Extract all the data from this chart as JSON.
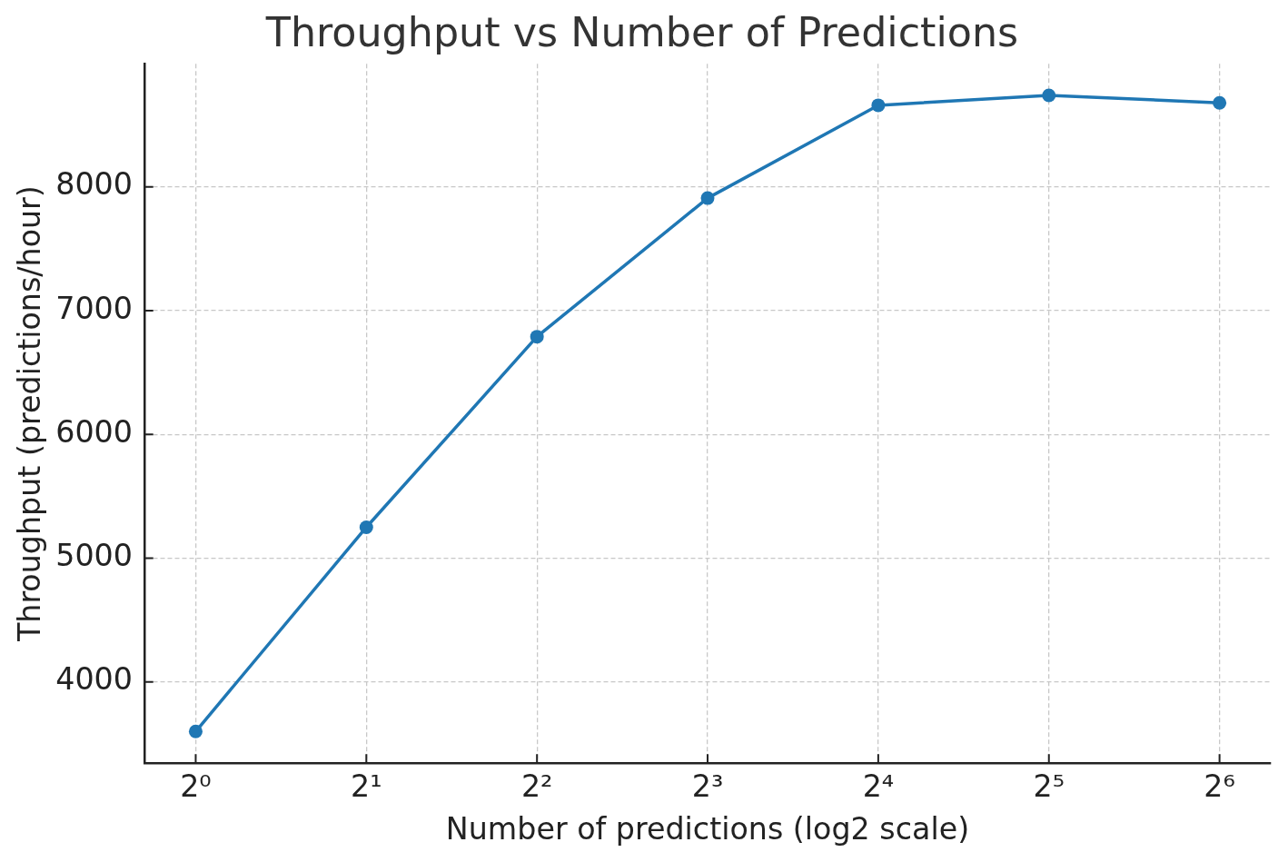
{
  "chart_data": {
    "type": "line",
    "title": "Throughput vs Number of Predictions",
    "xlabel": "Number of predictions (log2 scale)",
    "ylabel": "Throughput (predictions/hour)",
    "x": [
      1,
      2,
      4,
      8,
      16,
      32,
      64
    ],
    "series": [
      {
        "color": "#1f77b4",
        "values": [
          3600,
          5250,
          6790,
          7910,
          8660,
          8740,
          8680
        ]
      }
    ],
    "log": "x",
    "xlim": [
      0.812,
      78.8
    ],
    "xticks": [
      {
        "value": 1,
        "label": "2⁰"
      },
      {
        "value": 2,
        "label": "2¹"
      },
      {
        "value": 4,
        "label": "2²"
      },
      {
        "value": 8,
        "label": "2³"
      },
      {
        "value": 16,
        "label": "2⁴"
      },
      {
        "value": 32,
        "label": "2⁵"
      },
      {
        "value": 64,
        "label": "2⁶"
      }
    ],
    "ylim": [
      3345,
      8995
    ],
    "yticks": [
      4000,
      5000,
      6000,
      7000,
      8000
    ],
    "grid": true,
    "marker": "circle",
    "line_style": "solid"
  }
}
